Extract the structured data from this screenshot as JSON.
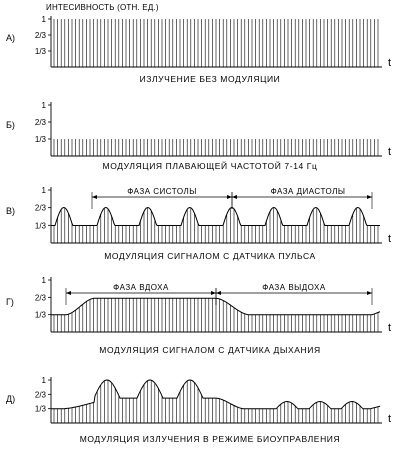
{
  "y_axis_label": "ИНТЕСИВНОСТЬ (ОТН. ЕД.)",
  "t_label": "t",
  "y_ticks": [
    "1",
    "2/3",
    "1/3"
  ],
  "panels": [
    {
      "id": "a",
      "label": "А)",
      "caption": "ИЗЛУЧЕНИЕ БЕЗ МОДУЛЯЦИИ",
      "phases": [],
      "intensity": "constant 1"
    },
    {
      "id": "b",
      "label": "Б)",
      "caption": "МОДУЛЯЦИЯ ПЛАВАЮЩЕЙ ЧАСТОТОЙ 7-14 Гц",
      "phases": [],
      "intensity": "constant 1/3"
    },
    {
      "id": "v",
      "label": "В)",
      "caption": "МОДУЛЯЦИЯ СИГНАЛОМ С ДАТЧИКА ПУЛЬСА",
      "phases": [
        "ФАЗА СИСТОЛЫ",
        "ФАЗА ДИАСТОЛЫ"
      ],
      "intensity": "pulse wave 1/3 to 2/3"
    },
    {
      "id": "g",
      "label": "Г)",
      "caption": "МОДУЛЯЦИЯ СИГНАЛОМ С ДАТЧИКА ДЫХАНИЯ",
      "phases": [
        "ФАЗА ВДОХА",
        "ФАЗА ВЫДОХА"
      ],
      "intensity": "breathing wave 1/3 to 2/3"
    },
    {
      "id": "d",
      "label": "Д)",
      "caption": "МОДУЛЯЦИЯ ИЗЛУЧЕНИЯ В РЕЖИМЕ БИОУПРАВЛЕНИЯ",
      "phases": [],
      "intensity": "biofeedback wave 1/3 to 1"
    }
  ]
}
